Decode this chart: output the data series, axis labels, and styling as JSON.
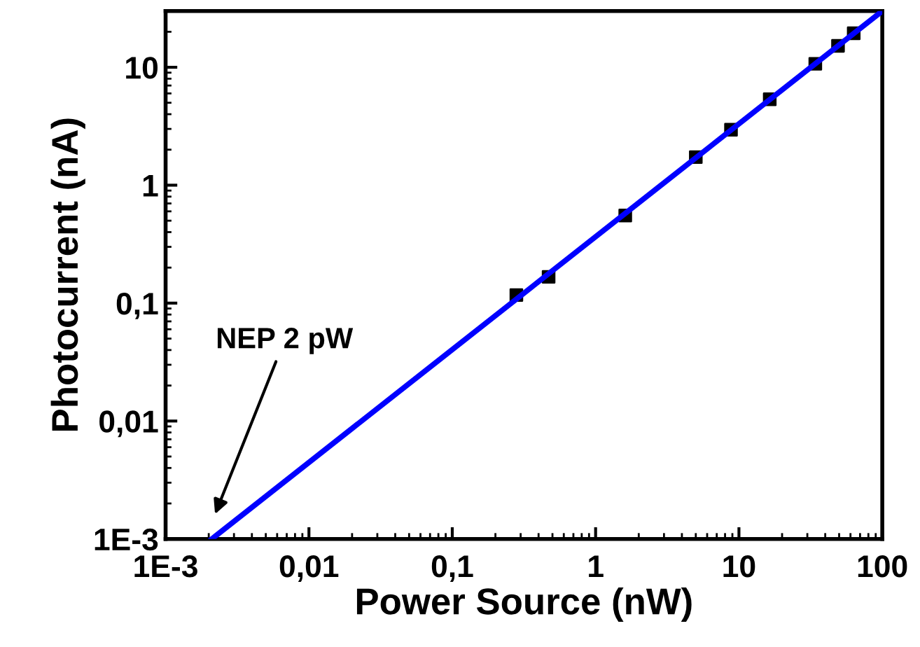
{
  "chart_data": {
    "type": "scatter",
    "xlabel": "Power Source (nW)",
    "ylabel": "Photocurrent (nA)",
    "log": "xy",
    "xlim": [
      0.001,
      100
    ],
    "ylim": [
      0.001,
      30
    ],
    "xticks": [
      {
        "value": 0.001,
        "label": "1E-3"
      },
      {
        "value": 0.01,
        "label": "0,01"
      },
      {
        "value": 0.1,
        "label": "0,1"
      },
      1,
      10,
      100
    ],
    "yticks": [
      {
        "value": 0.001,
        "label": "1E-3"
      },
      {
        "value": 0.01,
        "label": "0,01"
      },
      {
        "value": 0.1,
        "label": "0,1"
      },
      1,
      10
    ],
    "grid": false,
    "legend": false,
    "series": [
      {
        "color": "#000000",
        "marker": "square",
        "x": [
          0.28,
          0.47,
          1.61,
          5.0,
          8.8,
          16.4,
          34.1,
          49.1,
          63.2
        ],
        "values": [
          0.117,
          0.167,
          0.553,
          1.73,
          2.95,
          5.35,
          10.7,
          15.2,
          19.4
        ]
      },
      {
        "type": "line",
        "color": "#0000ff",
        "marker": "none",
        "line_style": "solid",
        "x": [
          0.0021,
          100
        ],
        "values": [
          0.001,
          30
        ]
      }
    ],
    "annotations": [
      "NEP 2 pW"
    ]
  }
}
